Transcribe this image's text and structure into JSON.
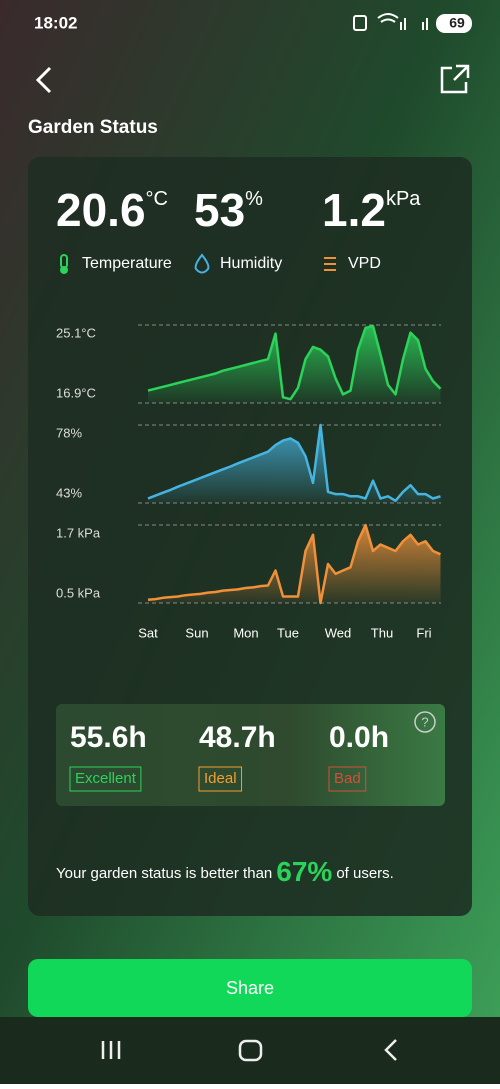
{
  "status_bar": {
    "time": "18:02",
    "battery": "69"
  },
  "header": {
    "title": "Garden Status"
  },
  "readings": [
    {
      "value": "20.6",
      "unit": "°C",
      "label": "Temperature"
    },
    {
      "value": "53",
      "unit": "%",
      "label": "Humidity"
    },
    {
      "value": "1.2",
      "unit": "kPa",
      "label": "VPD"
    }
  ],
  "chart_data": [
    {
      "type": "area",
      "color": "#2bd35a",
      "ylim": [
        16.9,
        25.1
      ],
      "yticks": [
        {
          "value": 16.9,
          "label": "16.9°C"
        },
        {
          "value": 25.1,
          "label": "25.1°C"
        }
      ],
      "values": [
        18.2,
        18.4,
        18.6,
        18.8,
        19.0,
        19.2,
        19.4,
        19.6,
        19.8,
        20.0,
        20.3,
        20.5,
        20.7,
        20.9,
        21.1,
        21.3,
        21.5,
        24.2,
        17.5,
        17.3,
        18.5,
        21.5,
        22.8,
        22.5,
        21.8,
        19.5,
        17.8,
        18.2,
        22.5,
        24.8,
        25.0,
        22.0,
        18.8,
        17.8,
        21.5,
        24.3,
        23.5,
        20.5,
        19.2,
        18.4
      ]
    },
    {
      "type": "area",
      "color": "#46b4e0",
      "ylim": [
        43,
        78
      ],
      "yticks": [
        {
          "value": 43,
          "label": "43%"
        },
        {
          "value": 78,
          "label": "78%"
        }
      ],
      "values": [
        45,
        46.3,
        47.6,
        48.9,
        50.3,
        51.6,
        52.9,
        54.2,
        55.5,
        56.8,
        58.1,
        59.4,
        60.8,
        62.1,
        63.4,
        64.7,
        66,
        69,
        71,
        72,
        70,
        64,
        52,
        78,
        48,
        47,
        47,
        46,
        46,
        45,
        53,
        45,
        46,
        44,
        48,
        51,
        47,
        47,
        45,
        46
      ]
    },
    {
      "type": "area",
      "color": "#f0913a",
      "ylim": [
        0.5,
        1.7
      ],
      "yticks": [
        {
          "value": 0.5,
          "label": "0.5 kPa"
        },
        {
          "value": 1.7,
          "label": "1.7 kPa"
        }
      ],
      "values": [
        0.55,
        0.56,
        0.58,
        0.59,
        0.6,
        0.62,
        0.63,
        0.64,
        0.66,
        0.67,
        0.69,
        0.7,
        0.71,
        0.73,
        0.74,
        0.76,
        0.77,
        1.0,
        0.6,
        0.6,
        0.6,
        1.3,
        1.55,
        0.5,
        1.1,
        0.95,
        1.0,
        1.05,
        1.45,
        1.7,
        1.3,
        1.4,
        1.35,
        1.3,
        1.45,
        1.55,
        1.4,
        1.45,
        1.3,
        1.25
      ]
    }
  ],
  "x_axis": {
    "labels": [
      "Sat",
      "Sun",
      "Mon",
      "Tue",
      "Wed",
      "Thu",
      "Fri"
    ]
  },
  "summary": [
    {
      "value": "55.6h",
      "label": "Excellent"
    },
    {
      "value": "48.7h",
      "label": "Ideal"
    },
    {
      "value": "0.0h",
      "label": "Bad"
    }
  ],
  "comparison": {
    "before": "Your garden status is better than",
    "percent": "67%",
    "after": "of users."
  },
  "button": {
    "label": "Share"
  }
}
